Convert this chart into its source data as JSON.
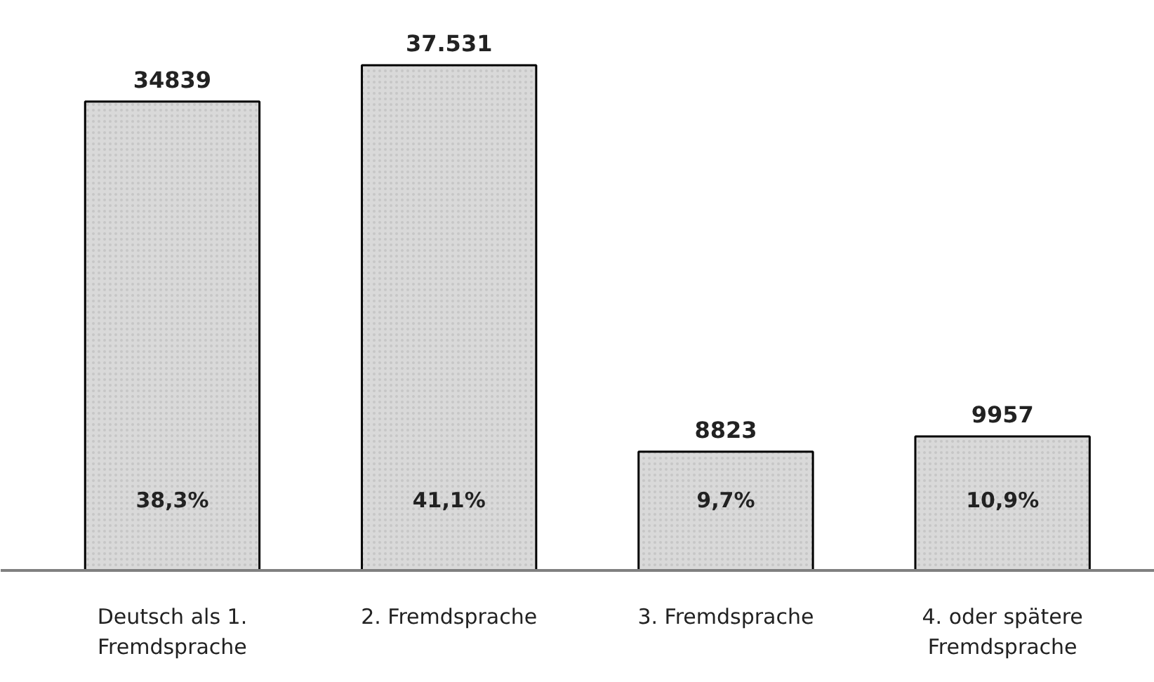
{
  "chart_data": {
    "type": "bar",
    "categories": [
      "Deutsch als 1.\nFremdsprache",
      "2. Fremdsprache",
      "3. Fremdsprache",
      "4. oder spätere\nFremdsprache"
    ],
    "values": [
      34839,
      37531,
      8823,
      9957
    ],
    "value_labels": [
      "34839",
      "37.531",
      "8823",
      "9957"
    ],
    "color": "#d9d9d9",
    "annotations": [
      "38,3%",
      "41,1%",
      "9,7%",
      "10,9%"
    ]
  }
}
